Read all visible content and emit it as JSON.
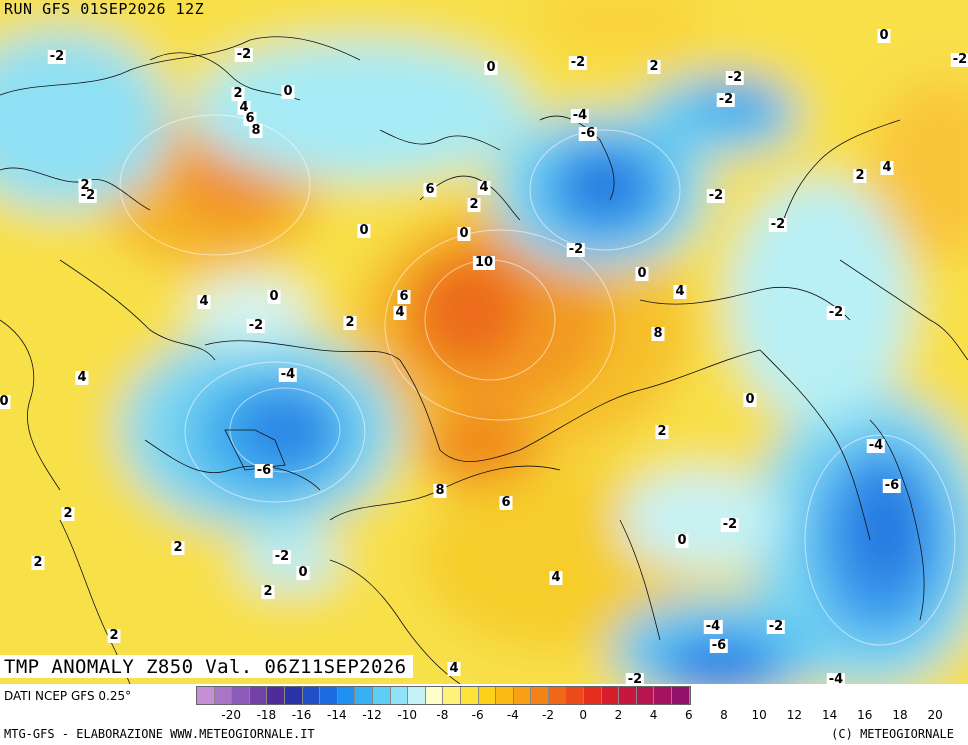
{
  "header": {
    "run_label": "RUN GFS 01SEP2026 12Z"
  },
  "map": {
    "field_title": "TMP ANOMALY Z850 Val. 06Z11SEP2026",
    "contour_labels": [
      "-2",
      "-2",
      "0",
      "-2",
      "2",
      "-2",
      "0",
      "-2",
      "2",
      "0",
      "4",
      "6",
      "8",
      "-4",
      "-6",
      "-2",
      "2",
      "-2",
      "0",
      "6",
      "4",
      "2",
      "0",
      "-2",
      "-2",
      "2",
      "4",
      "8",
      "0",
      "-2",
      "10",
      "6",
      "4",
      "0",
      "2",
      "4",
      "-2",
      "8",
      "4",
      "-2",
      "-4",
      "4",
      "0",
      "-6",
      "2",
      "8",
      "6",
      "2",
      "0",
      "-4",
      "-6",
      "-2",
      "2",
      "0",
      "-2",
      "2",
      "0",
      "4",
      "2",
      "-4",
      "-6",
      "-2",
      "-4",
      "2",
      "4",
      "-2",
      "-4",
      "-2"
    ],
    "colors": {
      "paper": "#ffffff",
      "land_outline": "#111111",
      "contour_line": "#ffffff"
    }
  },
  "legend": {
    "data_source": "DATI NCEP GFS 0.25°",
    "ticks": [
      "-20",
      "-18",
      "-16",
      "-14",
      "-12",
      "-10",
      "-8",
      "-6",
      "-4",
      "-2",
      "0",
      "2",
      "4",
      "6",
      "8",
      "10",
      "12",
      "14",
      "16",
      "18",
      "20"
    ],
    "colors": [
      "#c58fd6",
      "#a975c7",
      "#8d5bb8",
      "#7441a8",
      "#4f2c9a",
      "#2a33a8",
      "#1f4fc9",
      "#1c6be0",
      "#1f8ff0",
      "#35b0f5",
      "#5ccdf5",
      "#8fe3f7",
      "#c4f2f7",
      "#ffffcc",
      "#fff27a",
      "#ffe33a",
      "#fdd11a",
      "#fbbb12",
      "#f7a013",
      "#f48317",
      "#f06719",
      "#ec4a1a",
      "#e42d1c",
      "#d61d2c",
      "#c71640",
      "#b71450",
      "#a4135f",
      "#94126a"
    ]
  },
  "footer": {
    "left_credit": "MTG-GFS - ELABORAZIONE WWW.METEOGIORNALE.IT",
    "right_credit": "(C) METEOGIORNALE"
  }
}
